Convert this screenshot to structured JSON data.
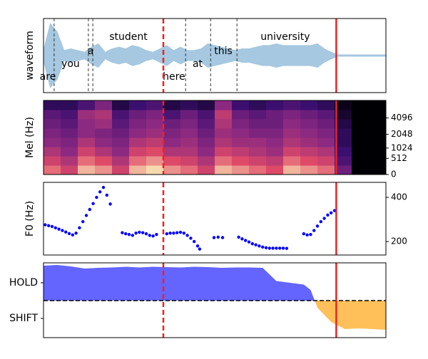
{
  "markers": {
    "dashed_x": 35,
    "solid_x": 85.5,
    "color": "#ee2222"
  },
  "chart_data": [
    {
      "type": "waveform",
      "ylabel": "waveform",
      "color": "#a6c8e0",
      "xlim": [
        0,
        100
      ],
      "ylim": [
        -1.1,
        1.1
      ],
      "x": [
        0,
        2,
        4,
        6,
        8,
        10,
        12,
        14,
        16,
        18,
        20,
        22,
        24,
        26,
        28,
        30,
        32,
        34,
        36,
        38,
        40,
        42,
        44,
        46,
        48,
        50,
        52,
        54,
        56,
        58,
        60,
        62,
        64,
        66,
        68,
        70,
        72,
        74,
        76,
        78,
        80,
        82,
        84,
        86,
        88,
        90,
        92,
        94,
        96,
        98,
        100
      ],
      "values": [
        0.15,
        0.95,
        0.7,
        0.15,
        0.2,
        0.15,
        0.1,
        0.25,
        0.35,
        0.1,
        0.2,
        0.25,
        0.2,
        0.3,
        0.25,
        0.15,
        0.1,
        0.2,
        0.3,
        0.15,
        0.25,
        0.15,
        0.15,
        0.2,
        0.35,
        0.3,
        0.25,
        0.2,
        0.15,
        0.2,
        0.2,
        0.25,
        0.3,
        0.3,
        0.35,
        0.3,
        0.3,
        0.3,
        0.3,
        0.3,
        0.35,
        0.2,
        0.1,
        0.02,
        0.02,
        0.02,
        0.02,
        0.02,
        0.02,
        0.02,
        0.02
      ],
      "words": [
        "are",
        "you",
        "a",
        "student",
        "here",
        "at",
        "this",
        "university"
      ],
      "word_x": [
        1.25,
        7.9,
        13.75,
        24.8,
        38.1,
        45,
        52.5,
        70.6
      ],
      "boundaries": [
        3.1,
        13.1,
        14.4,
        41.5,
        48.8,
        56.5
      ]
    },
    {
      "type": "heatmap",
      "ylabel": "Mel (Hz)",
      "colormap": "magma",
      "xlim": [
        0,
        100
      ],
      "yscale": "mel",
      "ylim": [
        0,
        8000
      ],
      "yticks": [
        0,
        512,
        1024,
        2048,
        4096
      ],
      "z": [
        [
          0.8,
          0.7,
          0.9,
          0.85,
          0.7,
          0.9,
          0.95,
          0.85,
          0.8,
          0.7,
          0.9,
          0.85,
          0.8,
          0.75,
          0.9,
          0.85,
          0.8,
          0.4,
          0,
          0
        ],
        [
          0.7,
          0.6,
          0.8,
          0.75,
          0.6,
          0.8,
          0.85,
          0.75,
          0.7,
          0.6,
          0.8,
          0.75,
          0.7,
          0.65,
          0.8,
          0.75,
          0.7,
          0.3,
          0,
          0
        ],
        [
          0.6,
          0.5,
          0.7,
          0.6,
          0.5,
          0.7,
          0.75,
          0.6,
          0.6,
          0.5,
          0.7,
          0.65,
          0.6,
          0.55,
          0.7,
          0.65,
          0.6,
          0.25,
          0,
          0
        ],
        [
          0.5,
          0.45,
          0.6,
          0.5,
          0.45,
          0.6,
          0.65,
          0.5,
          0.55,
          0.45,
          0.6,
          0.55,
          0.55,
          0.5,
          0.6,
          0.55,
          0.5,
          0.2,
          0,
          0
        ],
        [
          0.45,
          0.4,
          0.5,
          0.45,
          0.4,
          0.5,
          0.55,
          0.45,
          0.5,
          0.4,
          0.55,
          0.5,
          0.45,
          0.45,
          0.55,
          0.5,
          0.45,
          0.2,
          0,
          0
        ],
        [
          0.4,
          0.35,
          0.5,
          0.55,
          0.35,
          0.45,
          0.5,
          0.4,
          0.45,
          0.35,
          0.6,
          0.45,
          0.4,
          0.4,
          0.5,
          0.45,
          0.4,
          0.15,
          0,
          0
        ],
        [
          0.35,
          0.3,
          0.55,
          0.6,
          0.3,
          0.4,
          0.45,
          0.3,
          0.4,
          0.3,
          0.65,
          0.4,
          0.35,
          0.4,
          0.45,
          0.4,
          0.35,
          0.1,
          0,
          0
        ],
        [
          0.2,
          0.2,
          0.3,
          0.45,
          0.15,
          0.25,
          0.3,
          0.15,
          0.2,
          0.15,
          0.5,
          0.25,
          0.2,
          0.25,
          0.3,
          0.25,
          0.2,
          0.05,
          0,
          0
        ]
      ]
    },
    {
      "type": "scatter",
      "ylabel": "F0 (Hz)",
      "color": "#0000ff",
      "xlim": [
        0,
        100
      ],
      "ylim": [
        139,
        468
      ],
      "yticks": [
        200,
        400
      ],
      "x": [
        0.5,
        1.5,
        2.5,
        3.5,
        4.5,
        5.5,
        6.5,
        7.5,
        8.5,
        9.5,
        10.5,
        11.5,
        12.5,
        13.5,
        14.5,
        15.5,
        16.5,
        17.5,
        18.5,
        19.5,
        23,
        24,
        25,
        26,
        27,
        28,
        29,
        30,
        31,
        32,
        33,
        36,
        37,
        38,
        39,
        40,
        41,
        42,
        43,
        44,
        45,
        45.6,
        49.8,
        51,
        52.3,
        57,
        58,
        59,
        60,
        61,
        62,
        63,
        64,
        65,
        66,
        67,
        68,
        69,
        70,
        71,
        76,
        77,
        78,
        79,
        80,
        81,
        82,
        83,
        84,
        85
      ],
      "y": [
        276,
        272,
        268,
        262,
        256,
        250,
        243,
        236,
        230,
        238,
        262,
        290,
        318,
        345,
        372,
        400,
        425,
        445,
        410,
        370,
        240,
        235,
        232,
        228,
        238,
        242,
        240,
        235,
        228,
        225,
        232,
        235,
        238,
        238,
        240,
        242,
        238,
        228,
        215,
        200,
        180,
        166,
        218,
        220,
        218,
        220,
        212,
        205,
        198,
        190,
        185,
        180,
        175,
        172,
        170,
        170,
        170,
        170,
        170,
        169,
        235,
        230,
        232,
        250,
        270,
        290,
        305,
        320,
        330,
        340
      ]
    },
    {
      "type": "area",
      "pos_color": "#6464ff",
      "neg_color": "#ffc05a",
      "xlim": [
        0,
        100
      ],
      "ylim": [
        -1.04,
        1.06
      ],
      "yticks": [
        {
          "value": 0.5,
          "label": "HOLD"
        },
        {
          "value": -0.5,
          "label": "SHIFT"
        }
      ],
      "threshold": 0,
      "x": [
        0,
        4,
        8,
        12,
        16,
        20,
        24,
        28,
        32,
        36,
        40,
        44,
        48,
        52,
        56,
        60,
        64,
        68,
        72,
        76,
        78,
        80,
        82,
        84,
        88,
        92,
        96,
        100
      ],
      "values": [
        0.98,
        1.0,
        0.96,
        0.9,
        0.92,
        0.93,
        0.95,
        0.93,
        0.95,
        0.94,
        0.93,
        0.95,
        0.94,
        0.92,
        0.93,
        0.93,
        0.92,
        0.55,
        0.5,
        0.45,
        0.3,
        -0.2,
        -0.4,
        -0.6,
        -0.8,
        -0.78,
        -0.8,
        -0.82
      ]
    }
  ]
}
